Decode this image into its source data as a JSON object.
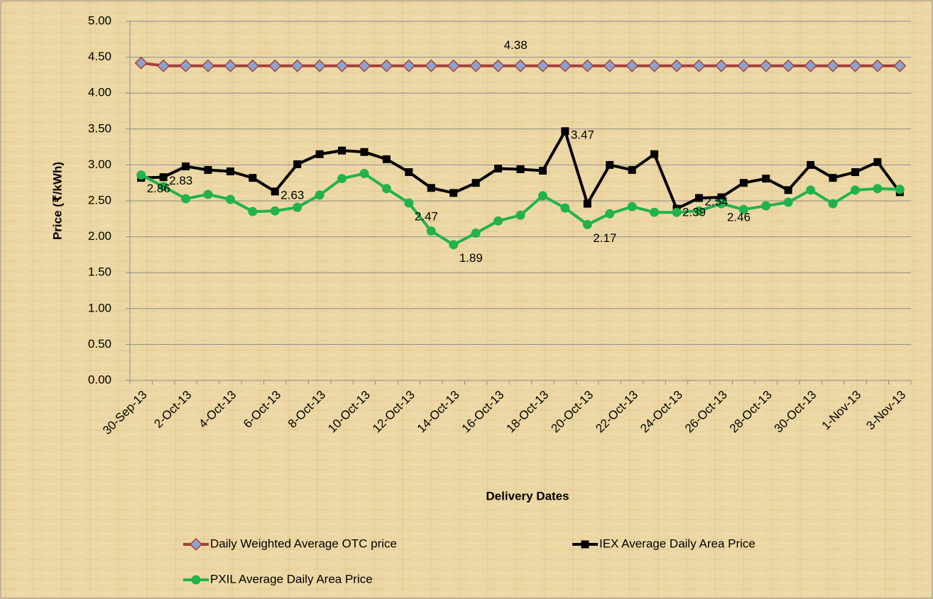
{
  "chart_data": {
    "type": "line",
    "x_label": "Delivery Dates",
    "y_label": "Price (₹/kWh)",
    "categories": [
      "30-Sep-13",
      null,
      "2-Oct-13",
      null,
      "4-Oct-13",
      null,
      "6-Oct-13",
      null,
      "8-Oct-13",
      null,
      "10-Oct-13",
      null,
      "12-Oct-13",
      null,
      "14-Oct-13",
      null,
      "16-Oct-13",
      null,
      "18-Oct-13",
      null,
      "20-Oct-13",
      null,
      "22-Oct-13",
      null,
      "24-Oct-13",
      null,
      "26-Oct-13",
      null,
      "28-Oct-13",
      null,
      "30-Oct-13",
      null,
      "1-Nov-13",
      null,
      "3-Nov-13"
    ],
    "series": [
      {
        "name": "Daily Weighted Average OTC price",
        "color": "#a3403b",
        "marker": "diamond",
        "marker_color": "#8da3cc",
        "values": [
          4.42,
          4.38,
          4.38,
          4.38,
          4.38,
          4.38,
          4.38,
          4.38,
          4.38,
          4.38,
          4.38,
          4.38,
          4.38,
          4.38,
          4.38,
          4.38,
          4.38,
          4.38,
          4.38,
          4.38,
          4.38,
          4.38,
          4.38,
          4.38,
          4.38,
          4.38,
          4.38,
          4.38,
          4.38,
          4.38,
          4.38,
          4.38,
          4.38,
          4.38,
          4.38
        ],
        "value_labels": [
          null,
          null,
          null,
          null,
          null,
          null,
          null,
          null,
          null,
          null,
          null,
          null,
          null,
          null,
          null,
          null,
          "4.38",
          null,
          null,
          null,
          null,
          null,
          null,
          null,
          null,
          null,
          null,
          null,
          null,
          null,
          null,
          null,
          null,
          null,
          null
        ]
      },
      {
        "name": "IEX Average Daily Area Price",
        "color": "#000000",
        "marker": "square",
        "marker_color": "#000000",
        "values": [
          2.82,
          2.83,
          2.98,
          2.93,
          2.91,
          2.82,
          2.63,
          3.01,
          3.15,
          3.2,
          3.18,
          3.08,
          2.9,
          2.68,
          2.61,
          2.75,
          2.95,
          2.94,
          2.92,
          3.47,
          2.46,
          3.0,
          2.93,
          3.15,
          2.39,
          2.54,
          2.55,
          2.75,
          2.81,
          2.65,
          3.0,
          2.82,
          2.9,
          3.04,
          2.62
        ],
        "value_labels": [
          null,
          "2.83",
          null,
          null,
          null,
          null,
          "2.63",
          null,
          null,
          null,
          null,
          null,
          null,
          null,
          null,
          null,
          null,
          null,
          null,
          "3.47",
          null,
          null,
          null,
          null,
          "2.39",
          "2.54",
          null,
          null,
          null,
          null,
          null,
          null,
          null,
          null,
          null
        ]
      },
      {
        "name": "PXIL Average Daily Area Price",
        "color": "#22b24c",
        "marker": "circle",
        "marker_color": "#22b24c",
        "values": [
          2.86,
          2.7,
          2.53,
          2.59,
          2.52,
          2.35,
          2.36,
          2.41,
          2.58,
          2.81,
          2.88,
          2.67,
          2.47,
          2.08,
          1.89,
          2.05,
          2.22,
          2.3,
          2.57,
          2.4,
          2.17,
          2.32,
          2.42,
          2.34,
          2.34,
          2.36,
          2.46,
          2.38,
          2.43,
          2.48,
          2.65,
          2.46,
          2.65,
          2.67,
          2.66
        ],
        "value_labels": [
          "2.86",
          null,
          null,
          null,
          null,
          null,
          null,
          null,
          null,
          null,
          null,
          null,
          "2.47",
          null,
          "1.89",
          null,
          null,
          null,
          null,
          null,
          "2.17",
          null,
          null,
          null,
          null,
          null,
          "2.46",
          null,
          null,
          null,
          null,
          null,
          null,
          null,
          null
        ]
      }
    ],
    "ylim": [
      0,
      5
    ],
    "yticks": [
      {
        "value": 0,
        "label": "0.00"
      },
      {
        "value": 0.5,
        "label": "0.50"
      },
      {
        "value": 1,
        "label": "1.00"
      },
      {
        "value": 1.5,
        "label": "1.50"
      },
      {
        "value": 2,
        "label": "2.00"
      },
      {
        "value": 2.5,
        "label": "2.50"
      },
      {
        "value": 3,
        "label": "3.00"
      },
      {
        "value": 3.5,
        "label": "3.50"
      },
      {
        "value": 4,
        "label": "4.00"
      },
      {
        "value": 4.5,
        "label": "4.50"
      },
      {
        "value": 5,
        "label": "5.00"
      }
    ],
    "grid": true,
    "legend": "bottom"
  }
}
